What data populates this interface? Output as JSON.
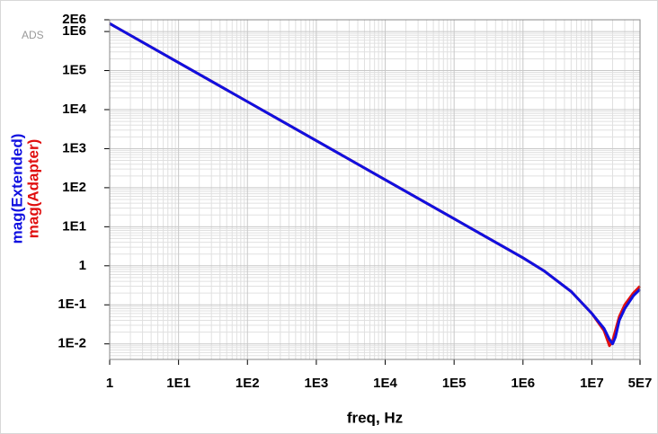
{
  "chart_data": {
    "type": "line",
    "watermark": "ADS",
    "x_label": "freq, Hz",
    "log_x": true,
    "log_y": true,
    "grid": true,
    "x": [
      1,
      10,
      100,
      1000,
      10000,
      100000,
      1000000,
      2000000,
      5000000,
      10000000,
      15000000,
      18000000,
      20000000,
      22000000,
      25000000,
      30000000,
      40000000,
      50000000
    ],
    "series": [
      {
        "name": "mag(Adapter)",
        "color": "#e01010",
        "values": [
          1600000,
          160000,
          16000,
          1600,
          160,
          16,
          1.6,
          0.75,
          0.22,
          0.06,
          0.022,
          0.009,
          0.012,
          0.022,
          0.05,
          0.1,
          0.2,
          0.3
        ]
      },
      {
        "name": "mag(Extended)",
        "color": "#1010e0",
        "values": [
          1600000,
          160000,
          16000,
          1600,
          160,
          16,
          1.6,
          0.75,
          0.22,
          0.06,
          0.025,
          0.013,
          0.01,
          0.015,
          0.04,
          0.08,
          0.17,
          0.25
        ]
      }
    ],
    "xlim": [
      1,
      50000000
    ],
    "xticks": [
      1,
      {
        "value": 10,
        "label": "1E1"
      },
      {
        "value": 100,
        "label": "1E2"
      },
      {
        "value": 1000,
        "label": "1E3"
      },
      {
        "value": 10000,
        "label": "1E4"
      },
      {
        "value": 100000,
        "label": "1E5"
      },
      {
        "value": 1000000,
        "label": "1E6"
      },
      {
        "value": 10000000,
        "label": "1E7"
      },
      {
        "value": 50000000,
        "label": "5E7"
      }
    ],
    "ylim": [
      0.004,
      2000000
    ],
    "yticks": [
      {
        "value": 0.01,
        "label": "1E-2"
      },
      {
        "value": 0.1,
        "label": "1E-1"
      },
      1,
      {
        "value": 10,
        "label": "1E1"
      },
      {
        "value": 100,
        "label": "1E2"
      },
      {
        "value": 1000,
        "label": "1E3"
      },
      {
        "value": 10000,
        "label": "1E4"
      },
      {
        "value": 100000,
        "label": "1E5"
      },
      {
        "value": 1000000,
        "label": "1E6"
      },
      {
        "value": 2000000,
        "label": "2E6"
      }
    ]
  }
}
